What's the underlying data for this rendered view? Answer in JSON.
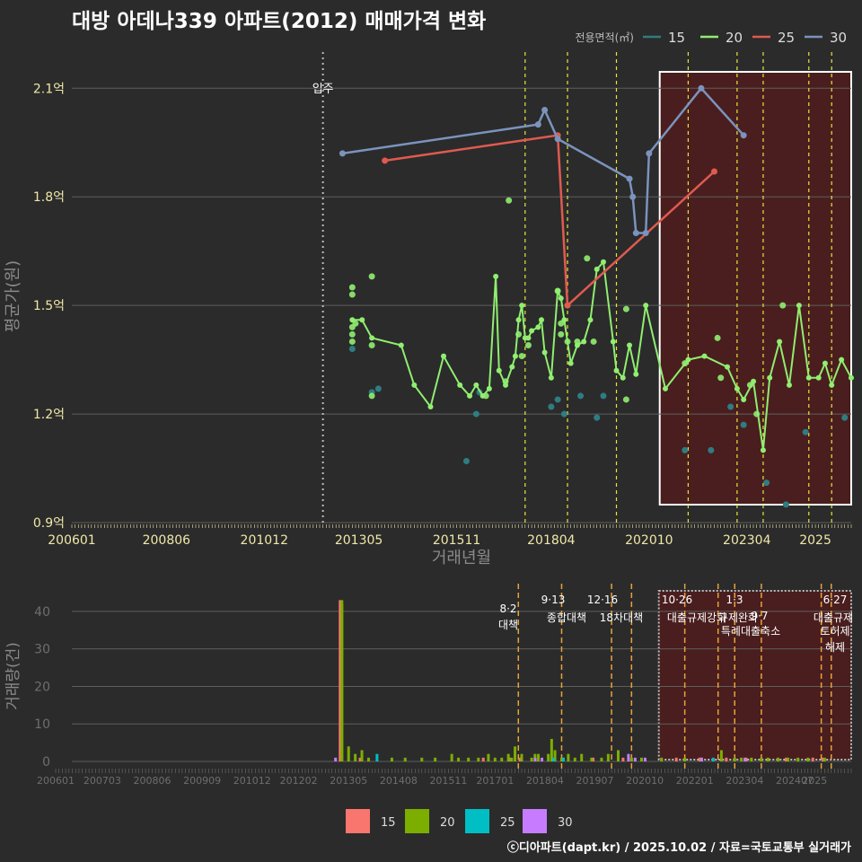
{
  "title": "대방 아데나339 아파트(2012) 매매가격 변화",
  "footer": "ⓒ디아파트(dapt.kr) / 2025.10.02 / 자료=국토교통부 실거래가",
  "colors": {
    "background": "#2b2b2b",
    "grid": "#5e5e5e",
    "tick_text": "#f0e8a8",
    "lower_tick_text": "#6e6e6e",
    "axis_label": "#8a8a8a",
    "policy_line": "#e6e63c",
    "lower_policy_line": "#e6a23c",
    "highlight_fill": "#4a1e1e",
    "s15": "#2e7d82",
    "s20": "#90ee70",
    "s25": "#e05a50",
    "s30": "#7b93bd",
    "bar15": "#f8766d",
    "bar20": "#7cae00",
    "bar25": "#00bfc4",
    "bar30": "#c77cff"
  },
  "chart_data": [
    {
      "type": "line",
      "title": "대방 아데나339 아파트(2012) 매매가격 변화",
      "xlabel": "거래년월",
      "ylabel": "평균가(원)",
      "xlim": [
        "2006-01",
        "2025-12"
      ],
      "ylim": [
        0.9,
        2.2
      ],
      "y_unit": "억",
      "x_ticks": [
        "200601",
        "200806",
        "201012",
        "201305",
        "201511",
        "201804",
        "202010",
        "202304",
        "2025"
      ],
      "y_ticks": [
        "0.9억",
        "1.2억",
        "1.5억",
        "1.8억",
        "2.1억"
      ],
      "y_tick_values": [
        0.9,
        1.2,
        1.5,
        1.8,
        2.1
      ],
      "legend_title": "전용면적(㎡)",
      "legend_position": "top-right",
      "grid": true,
      "event_line": {
        "date": "2012-06",
        "label": "입주"
      },
      "policy_dates": [
        "2017-08",
        "2018-09",
        "2019-12",
        "2021-10",
        "2023-01",
        "2023-09",
        "2024-11",
        "2025-06"
      ],
      "highlight_range": [
        "2021-01",
        "2025-12"
      ],
      "series": [
        {
          "name": "15",
          "color_key": "s15",
          "points": [
            [
              "2013-03",
              1.38
            ],
            [
              "2013-09",
              1.26
            ],
            [
              "2013-11",
              1.27
            ],
            [
              "2016-02",
              1.07
            ],
            [
              "2016-05",
              1.2
            ],
            [
              "2016-06",
              1.26
            ],
            [
              "2018-04",
              1.22
            ],
            [
              "2018-06",
              1.24
            ],
            [
              "2018-08",
              1.2
            ],
            [
              "2019-01",
              1.25
            ],
            [
              "2019-06",
              1.19
            ],
            [
              "2019-08",
              1.25
            ],
            [
              "2021-09",
              1.1
            ],
            [
              "2022-05",
              1.1
            ],
            [
              "2022-11",
              1.22
            ],
            [
              "2023-03",
              1.17
            ],
            [
              "2023-10",
              1.01
            ],
            [
              "2024-04",
              0.95
            ],
            [
              "2024-10",
              1.15
            ],
            [
              "2025-10",
              1.19
            ]
          ]
        },
        {
          "name": "20",
          "color_key": "s20",
          "line": [
            [
              "2013-03",
              1.46
            ],
            [
              "2013-06",
              1.46
            ],
            [
              "2013-09",
              1.41
            ],
            [
              "2014-06",
              1.39
            ],
            [
              "2014-10",
              1.28
            ],
            [
              "2015-03",
              1.22
            ],
            [
              "2015-07",
              1.36
            ],
            [
              "2015-12",
              1.28
            ],
            [
              "2016-03",
              1.25
            ],
            [
              "2016-05",
              1.28
            ],
            [
              "2016-07",
              1.25
            ],
            [
              "2016-09",
              1.27
            ],
            [
              "2016-11",
              1.58
            ],
            [
              "2016-12",
              1.32
            ],
            [
              "2017-02",
              1.28
            ],
            [
              "2017-04",
              1.33
            ],
            [
              "2017-05",
              1.36
            ],
            [
              "2017-06",
              1.46
            ],
            [
              "2017-07",
              1.5
            ],
            [
              "2017-08",
              1.41
            ],
            [
              "2017-09",
              1.41
            ],
            [
              "2017-10",
              1.43
            ],
            [
              "2017-12",
              1.44
            ],
            [
              "2018-01",
              1.46
            ],
            [
              "2018-02",
              1.37
            ],
            [
              "2018-04",
              1.3
            ],
            [
              "2018-06",
              1.54
            ],
            [
              "2018-07",
              1.52
            ],
            [
              "2018-08",
              1.46
            ],
            [
              "2018-10",
              1.34
            ],
            [
              "2018-12",
              1.39
            ],
            [
              "2019-02",
              1.4
            ],
            [
              "2019-04",
              1.46
            ],
            [
              "2019-06",
              1.6
            ],
            [
              "2019-08",
              1.62
            ],
            [
              "2019-11",
              1.4
            ],
            [
              "2019-12",
              1.32
            ],
            [
              "2020-02",
              1.3
            ],
            [
              "2020-04",
              1.39
            ],
            [
              "2020-06",
              1.31
            ],
            [
              "2020-09",
              1.5
            ],
            [
              "2021-03",
              1.27
            ],
            [
              "2021-10",
              1.35
            ],
            [
              "2022-03",
              1.36
            ],
            [
              "2022-10",
              1.33
            ],
            [
              "2023-01",
              1.27
            ],
            [
              "2023-03",
              1.24
            ],
            [
              "2023-06",
              1.29
            ],
            [
              "2023-09",
              1.1
            ],
            [
              "2023-11",
              1.3
            ],
            [
              "2024-02",
              1.4
            ],
            [
              "2024-05",
              1.28
            ],
            [
              "2024-08",
              1.5
            ],
            [
              "2024-11",
              1.3
            ],
            [
              "2025-02",
              1.3
            ],
            [
              "2025-04",
              1.34
            ],
            [
              "2025-06",
              1.28
            ],
            [
              "2025-09",
              1.35
            ],
            [
              "2025-12",
              1.3
            ]
          ],
          "extra_points": [
            [
              "2013-03",
              1.55
            ],
            [
              "2013-03",
              1.53
            ],
            [
              "2013-03",
              1.44
            ],
            [
              "2013-03",
              1.42
            ],
            [
              "2013-03",
              1.4
            ],
            [
              "2013-04",
              1.45
            ],
            [
              "2013-09",
              1.58
            ],
            [
              "2013-09",
              1.39
            ],
            [
              "2013-09",
              1.25
            ],
            [
              "2016-08",
              1.25
            ],
            [
              "2017-02",
              1.29
            ],
            [
              "2017-03",
              1.79
            ],
            [
              "2017-06",
              1.42
            ],
            [
              "2017-07",
              1.36
            ],
            [
              "2017-09",
              1.39
            ],
            [
              "2018-06",
              1.54
            ],
            [
              "2018-07",
              1.45
            ],
            [
              "2018-07",
              1.42
            ],
            [
              "2018-09",
              1.4
            ],
            [
              "2018-12",
              1.4
            ],
            [
              "2019-03",
              1.63
            ],
            [
              "2019-05",
              1.4
            ],
            [
              "2020-03",
              1.24
            ],
            [
              "2020-03",
              1.49
            ],
            [
              "2021-09",
              1.34
            ],
            [
              "2022-07",
              1.41
            ],
            [
              "2022-08",
              1.3
            ],
            [
              "2023-05",
              1.28
            ],
            [
              "2023-07",
              1.2
            ],
            [
              "2024-03",
              1.5
            ]
          ]
        },
        {
          "name": "25",
          "color_key": "s25",
          "points": [
            [
              "2014-01",
              1.9
            ],
            [
              "2018-06",
              1.97
            ],
            [
              "2018-09",
              1.5
            ],
            [
              "2022-06",
              1.87
            ]
          ]
        },
        {
          "name": "30",
          "color_key": "s30",
          "points": [
            [
              "2012-12",
              1.92
            ],
            [
              "2017-12",
              2.0
            ],
            [
              "2018-02",
              2.04
            ],
            [
              "2018-06",
              1.96
            ],
            [
              "2020-04",
              1.85
            ],
            [
              "2020-05",
              1.8
            ],
            [
              "2020-06",
              1.7
            ],
            [
              "2020-09",
              1.7
            ],
            [
              "2020-10",
              1.92
            ],
            [
              "2022-02",
              2.1
            ],
            [
              "2023-03",
              1.97
            ]
          ]
        }
      ]
    },
    {
      "type": "bar",
      "ylabel": "거래량(건)",
      "ylim": [
        0,
        45
      ],
      "y_ticks": [
        "0",
        "10",
        "20",
        "30",
        "40"
      ],
      "y_tick_values": [
        0,
        10,
        20,
        30,
        40
      ],
      "x_ticks": [
        "200601",
        "200703",
        "200806",
        "200909",
        "201012",
        "201202",
        "201305",
        "201408",
        "201511",
        "201701",
        "201804",
        "201907",
        "202010",
        "202201",
        "202304",
        "202407",
        "2025"
      ],
      "legend_position": "bottom",
      "highlight_range": [
        "2021-01",
        "2025-12"
      ],
      "policies": [
        {
          "date": "2017-08",
          "label": "8·2 대책"
        },
        {
          "date": "2018-09",
          "label": "9·13 종합대책"
        },
        {
          "date": "2019-12",
          "label": "12·16 18차대책"
        },
        {
          "date": "2020-06",
          "label": ""
        },
        {
          "date": "2021-10",
          "label": "10·26 대출규제강화"
        },
        {
          "date": "2022-08",
          "label": ""
        },
        {
          "date": "2023-01",
          "label": "1·3 규제완화"
        },
        {
          "date": "2023-09",
          "label": "9·7 특례대출축소"
        },
        {
          "date": "2025-06",
          "label": "6·27 대출규제"
        },
        {
          "date": "2025-03",
          "label": "토허제 해제"
        }
      ],
      "series": [
        {
          "name": "15",
          "color_key": "bar15",
          "bars": [
            [
              "2013-03",
              43
            ],
            [
              "2013-09",
              1
            ],
            [
              "2016-10",
              1
            ],
            [
              "2017-06",
              1
            ],
            [
              "2017-09",
              1
            ],
            [
              "2018-10",
              1
            ],
            [
              "2019-07",
              1
            ],
            [
              "2020-04",
              1
            ],
            [
              "2021-08",
              1
            ],
            [
              "2022-03",
              1
            ],
            [
              "2022-11",
              1
            ],
            [
              "2023-05",
              1
            ],
            [
              "2024-05",
              1
            ],
            [
              "2025-01",
              1
            ],
            [
              "2025-04",
              1
            ]
          ]
        },
        {
          "name": "20",
          "color_key": "bar20",
          "bars": [
            [
              "2013-03",
              43
            ],
            [
              "2013-05",
              4
            ],
            [
              "2013-07",
              2
            ],
            [
              "2013-09",
              3
            ],
            [
              "2013-11",
              1
            ],
            [
              "2014-06",
              1
            ],
            [
              "2014-10",
              1
            ],
            [
              "2015-03",
              1
            ],
            [
              "2015-07",
              1
            ],
            [
              "2015-12",
              2
            ],
            [
              "2016-02",
              1
            ],
            [
              "2016-05",
              1
            ],
            [
              "2016-08",
              1
            ],
            [
              "2016-11",
              2
            ],
            [
              "2017-01",
              1
            ],
            [
              "2017-03",
              1
            ],
            [
              "2017-05",
              2
            ],
            [
              "2017-06",
              1
            ],
            [
              "2017-07",
              4
            ],
            [
              "2017-09",
              2
            ],
            [
              "2017-12",
              1
            ],
            [
              "2018-01",
              2
            ],
            [
              "2018-02",
              2
            ],
            [
              "2018-05",
              2
            ],
            [
              "2018-06",
              6
            ],
            [
              "2018-07",
              3
            ],
            [
              "2018-09",
              1
            ],
            [
              "2018-11",
              2
            ],
            [
              "2019-01",
              1
            ],
            [
              "2019-03",
              2
            ],
            [
              "2019-06",
              1
            ],
            [
              "2019-09",
              1
            ],
            [
              "2019-11",
              2
            ],
            [
              "2020-02",
              3
            ],
            [
              "2020-06",
              1
            ],
            [
              "2020-09",
              1
            ],
            [
              "2021-03",
              1
            ],
            [
              "2021-10",
              1
            ],
            [
              "2022-03",
              1
            ],
            [
              "2022-09",
              3
            ],
            [
              "2023-01",
              1
            ],
            [
              "2023-03",
              1
            ],
            [
              "2023-06",
              1
            ],
            [
              "2023-09",
              1
            ],
            [
              "2023-11",
              1
            ],
            [
              "2024-02",
              1
            ],
            [
              "2024-05",
              1
            ],
            [
              "2024-08",
              1
            ],
            [
              "2024-11",
              1
            ],
            [
              "2025-04",
              1
            ]
          ]
        },
        {
          "name": "25",
          "color_key": "bar25",
          "bars": [
            [
              "2014-01",
              2
            ],
            [
              "2018-06",
              1
            ],
            [
              "2018-09",
              1
            ],
            [
              "2022-06",
              1
            ]
          ]
        },
        {
          "name": "30",
          "color_key": "bar30",
          "bars": [
            [
              "2012-12",
              1
            ],
            [
              "2017-12",
              1
            ],
            [
              "2018-02",
              1
            ],
            [
              "2020-04",
              2
            ],
            [
              "2020-06",
              1
            ],
            [
              "2020-09",
              1
            ],
            [
              "2022-02",
              1
            ],
            [
              "2023-03",
              1
            ]
          ]
        }
      ]
    }
  ]
}
